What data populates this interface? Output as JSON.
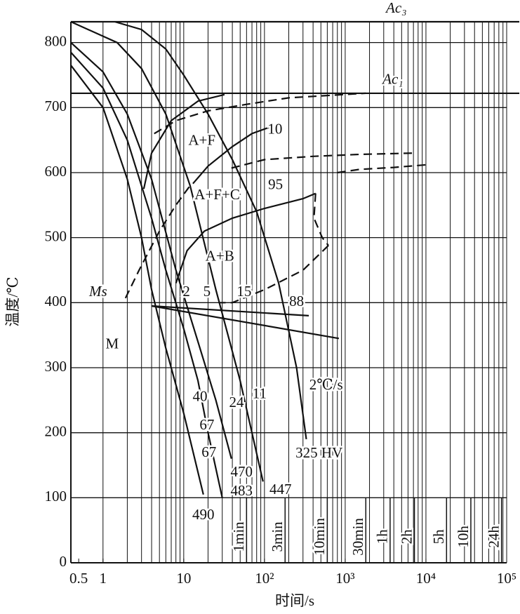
{
  "chart_data": {
    "type": "cct",
    "x_label": "时间/s",
    "y_label": "温度/℃",
    "xlim": [
      0.4,
      100000
    ],
    "ylim": [
      0,
      832
    ],
    "log_x": true,
    "xticks": [
      0.5,
      1,
      10,
      {
        "value": 100,
        "label": "10²"
      },
      {
        "value": 1000,
        "label": "10³"
      },
      {
        "value": 10000,
        "label": "10⁴"
      },
      {
        "value": 100000,
        "label": "10⁵"
      }
    ],
    "yticks": [
      0,
      100,
      200,
      300,
      400,
      500,
      600,
      700,
      800
    ],
    "xgrid": [
      1,
      2,
      3,
      4,
      5,
      6,
      7,
      8,
      9,
      10,
      20,
      30,
      40,
      50,
      60,
      70,
      80,
      90,
      100,
      200,
      300,
      400,
      500,
      600,
      700,
      800,
      900,
      1000,
      2000,
      3000,
      4000,
      5000,
      6000,
      7000,
      8000,
      9000,
      10000,
      20000,
      30000,
      40000,
      50000,
      60000,
      70000,
      80000,
      90000,
      100000
    ],
    "grid": true,
    "time_marks": [
      {
        "value": 60,
        "label": "1min"
      },
      {
        "value": 180,
        "label": "3min"
      },
      {
        "value": 600,
        "label": "10min"
      },
      {
        "value": 1800,
        "label": "30min"
      },
      {
        "value": 3600,
        "label": "1h"
      },
      {
        "value": 7200,
        "label": "2h"
      },
      {
        "value": 18000,
        "label": "5h"
      },
      {
        "value": 36000,
        "label": "10h"
      },
      {
        "value": 86400,
        "label": "24h"
      }
    ],
    "reference_lines": [
      {
        "label": "Ac₃",
        "value": 832,
        "label_x": 4300
      },
      {
        "label": "Ac₁",
        "value": 722,
        "label_x": 3900
      }
    ],
    "curves": [
      {
        "style": "solid",
        "x": [
          0.4,
          1,
          2,
          3,
          4,
          6,
          10,
          17.5
        ],
        "y": [
          765,
          700,
          590,
          500,
          420,
          330,
          230,
          105
        ]
      },
      {
        "style": "solid",
        "x": [
          0.4,
          1,
          2,
          4,
          6,
          10,
          15,
          20,
          30
        ],
        "y": [
          785,
          730,
          650,
          530,
          450,
          360,
          280,
          200,
          100
        ]
      },
      {
        "style": "solid",
        "x": [
          0.4,
          1,
          2,
          4,
          8,
          15,
          25,
          39
        ],
        "y": [
          800,
          755,
          690,
          590,
          450,
          340,
          250,
          160
        ]
      },
      {
        "style": "solid",
        "x": [
          0.4,
          1.5,
          3,
          6,
          12,
          25,
          50,
          96
        ],
        "y": [
          832,
          800,
          760,
          690,
          580,
          420,
          280,
          125
        ]
      },
      {
        "style": "solid",
        "x": [
          1.4,
          3,
          6,
          10,
          20,
          40,
          80,
          150,
          250,
          330
        ],
        "y": [
          832,
          820,
          790,
          750,
          690,
          620,
          540,
          430,
          300,
          190
        ]
      },
      {
        "style": "solid",
        "x": [
          3.2,
          4,
          7,
          15,
          32
        ],
        "y": [
          575,
          630,
          680,
          710,
          720
        ]
      },
      {
        "style": "solid",
        "x": [
          13,
          20,
          40,
          70,
          117
        ],
        "y": [
          583,
          610,
          640,
          660,
          670
        ]
      },
      {
        "style": "solid",
        "x": [
          8,
          11,
          18,
          40,
          100,
          300,
          430
        ],
        "y": [
          430,
          480,
          510,
          530,
          545,
          560,
          568
        ]
      },
      {
        "style": "solid",
        "x": [
          4,
          354
        ],
        "y": [
          395,
          380
        ]
      },
      {
        "style": "solid",
        "x": [
          4,
          835
        ],
        "y": [
          395,
          345
        ]
      },
      {
        "style": "dashed",
        "x": [
          4.3,
          8,
          20,
          60,
          200,
          1800
        ],
        "y": [
          660,
          680,
          695,
          705,
          715,
          722
        ]
      },
      {
        "style": "dashed",
        "x": [
          39,
          100,
          400,
          1500,
          6900
        ],
        "y": [
          607,
          620,
          625,
          628,
          630
        ]
      },
      {
        "style": "dashed",
        "x": [
          800,
          1500,
          4000,
          10000
        ],
        "y": [
          600,
          605,
          608,
          612
        ]
      },
      {
        "style": "dashed",
        "x": [
          430,
          410,
          520,
          620
        ],
        "y": [
          568,
          530,
          500,
          488
        ]
      },
      {
        "style": "dashed",
        "x": [
          620,
          300,
          100,
          40,
          27
        ],
        "y": [
          488,
          450,
          420,
          400,
          400
        ]
      },
      {
        "style": "dashed",
        "x": [
          1.9,
          2.8,
          5,
          8,
          12
        ],
        "y": [
          407,
          450,
          510,
          550,
          580
        ]
      }
    ],
    "annotations": [
      {
        "text": "A+F",
        "x": 16.8,
        "y": 648
      },
      {
        "text": "10",
        "x": 135,
        "y": 665
      },
      {
        "text": "A+F+C",
        "x": 26,
        "y": 564
      },
      {
        "text": "95",
        "x": 137,
        "y": 580
      },
      {
        "text": "A+B",
        "x": 28,
        "y": 470
      },
      {
        "text": "Ms",
        "x": 0.87,
        "y": 415,
        "style": "italic"
      },
      {
        "text": "2",
        "x": 10.8,
        "y": 415
      },
      {
        "text": "5",
        "x": 19.4,
        "y": 415
      },
      {
        "text": "15",
        "x": 56,
        "y": 415
      },
      {
        "text": "88",
        "x": 250,
        "y": 400
      },
      {
        "text": "M",
        "x": 1.3,
        "y": 335
      },
      {
        "text": "2℃/s",
        "x": 580,
        "y": 272
      },
      {
        "text": "40",
        "x": 15.9,
        "y": 254
      },
      {
        "text": "24",
        "x": 45,
        "y": 245
      },
      {
        "text": "11",
        "x": 87,
        "y": 258
      },
      {
        "text": "67",
        "x": 19.4,
        "y": 210
      },
      {
        "text": "67",
        "x": 20.5,
        "y": 168
      },
      {
        "text": "325 HV",
        "x": 475,
        "y": 167
      },
      {
        "text": "470",
        "x": 52,
        "y": 138
      },
      {
        "text": "483",
        "x": 52,
        "y": 109
      },
      {
        "text": "447",
        "x": 158,
        "y": 111
      },
      {
        "text": "490",
        "x": 17.5,
        "y": 72
      }
    ]
  }
}
